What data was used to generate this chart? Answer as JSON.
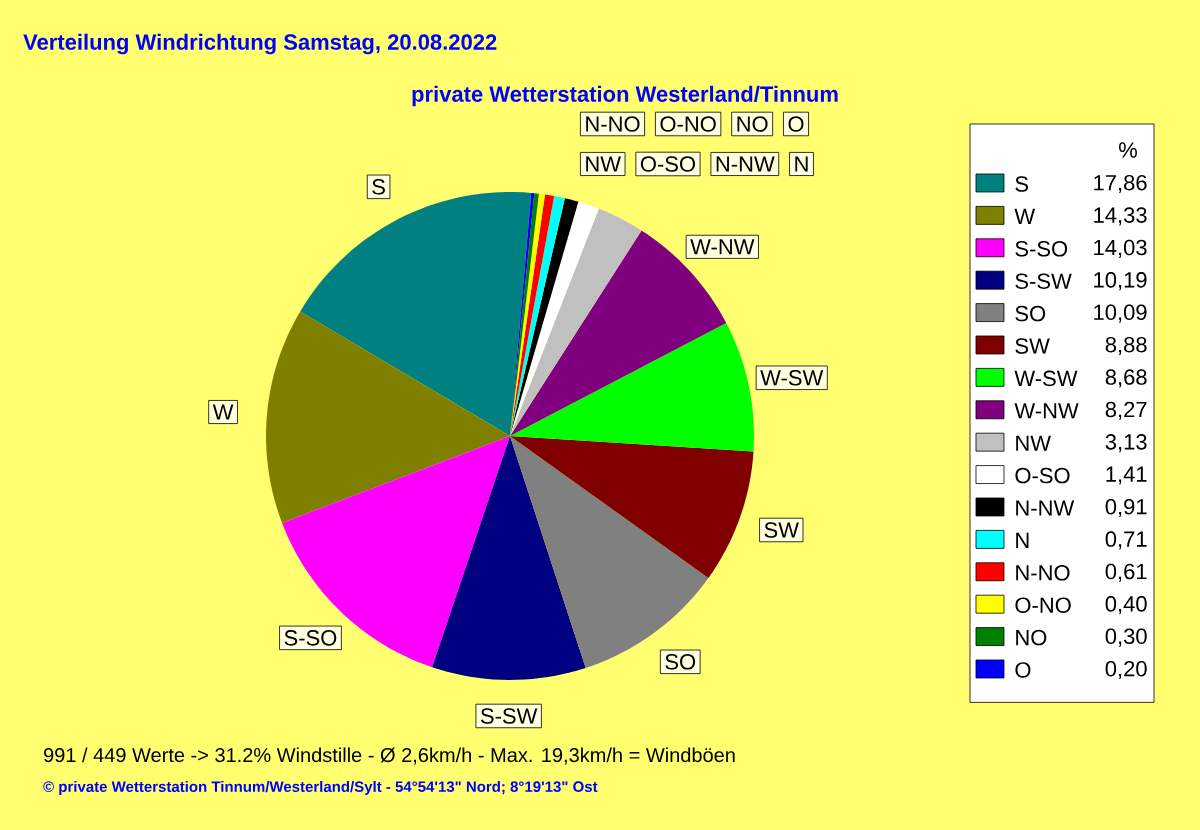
{
  "chart_data": {
    "type": "pie",
    "title": "Verteilung Windrichtung   Samstag, 20.08.2022",
    "subtitle": "private Wetterstation Westerland/Tinnum",
    "categories": [
      "S",
      "W",
      "S-SO",
      "S-SW",
      "SO",
      "SW",
      "W-SW",
      "W-NW",
      "NW",
      "O-SO",
      "N-NW",
      "N",
      "N-NO",
      "O-NO",
      "NO",
      "O"
    ],
    "values": [
      17.86,
      14.33,
      14.03,
      10.19,
      10.09,
      8.88,
      8.68,
      8.27,
      3.13,
      1.41,
      0.91,
      0.71,
      0.61,
      0.4,
      0.3,
      0.2
    ],
    "value_labels": [
      "17,86",
      "14,33",
      "14,03",
      "10,19",
      "10,09",
      "8,88",
      "8,68",
      "8,27",
      "3,13",
      "1,41",
      "0,91",
      "0,71",
      "0,61",
      "0,40",
      "0,30",
      "0,20"
    ],
    "colors": [
      "#008080",
      "#808000",
      "#ff00ff",
      "#000080",
      "#808080",
      "#800000",
      "#00ff00",
      "#800080",
      "#c0c0c0",
      "#ffffff",
      "#000000",
      "#00ffff",
      "#ff0000",
      "#ffff00",
      "#008000",
      "#0000ff"
    ],
    "legend": "right",
    "legend_title": "%",
    "annotations": [
      "991 / 449 Werte  -> 31.2% Windstille   -   Ø 2,6km/h  -  Max. 19,3km/h = Windböen",
      "© private Wetterstation Tinnum/Westerland/Sylt   -   54°54'13\" Nord; 8°19'13\" Ost"
    ]
  }
}
